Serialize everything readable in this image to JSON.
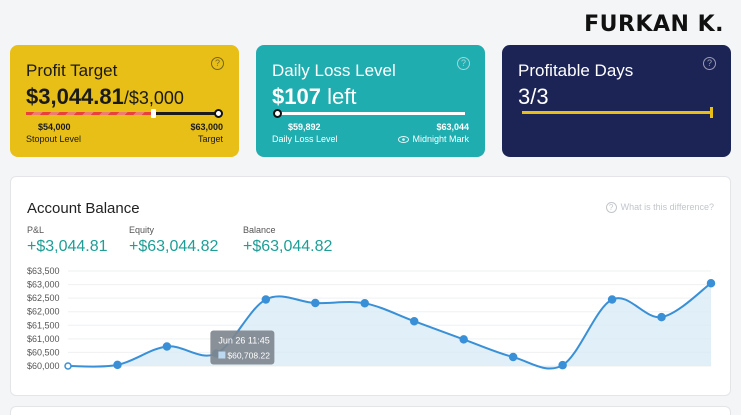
{
  "brand": "FURKAN K.",
  "cards": {
    "profit": {
      "title": "Profit Target",
      "value": "$3,044.81",
      "target": "/$3,000",
      "left_value": "$54,000",
      "left_label": "Stopout Level",
      "right_value": "$63,000",
      "right_label": "Target",
      "progress": 1.0
    },
    "loss": {
      "title": "Daily Loss Level",
      "value": "$107",
      "value_suffix": "left",
      "left_value": "$59,892",
      "left_label": "Daily Loss Level",
      "right_value": "$63,044",
      "right_label": "Midnight Mark"
    },
    "days": {
      "title": "Profitable Days",
      "value": "3/3",
      "progress": 1.0
    },
    "help_glyph": "?"
  },
  "balance": {
    "title": "Account Balance",
    "hint": "What is this difference?",
    "stats": [
      {
        "label": "P&L",
        "value": "+$3,044.81"
      },
      {
        "label": "Equity",
        "value": "+$63,044.82"
      },
      {
        "label": "Balance",
        "value": "+$63,044.82"
      }
    ],
    "tooltip": {
      "date": "Jun 26 11:45",
      "value": "$60,708.22"
    }
  },
  "colors": {
    "line": "#3a90d6",
    "area": "#d9ebf7",
    "teal_text": "#1e9e96"
  },
  "chart_data": {
    "type": "area",
    "ylabel": "",
    "xlabel": "",
    "yticks": [
      "$63,500",
      "$63,000",
      "$62,500",
      "$62,000",
      "$61,500",
      "$61,000",
      "$60,500",
      "$60,000"
    ],
    "ylim": [
      60000,
      63500
    ],
    "series": [
      {
        "values": [
          60000,
          60040,
          60720,
          60460,
          62450,
          62320,
          62310,
          61650,
          60980,
          60330,
          60030,
          62450,
          61800,
          63050
        ]
      }
    ]
  }
}
